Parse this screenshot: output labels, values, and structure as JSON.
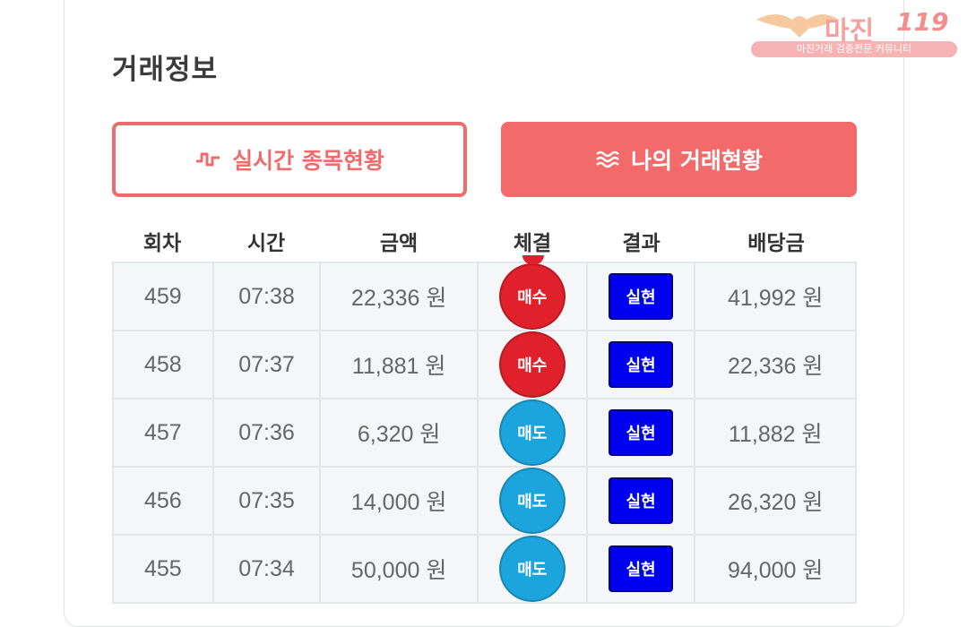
{
  "title": "거래정보",
  "watermark": {
    "brand": "마진",
    "suffix": "119",
    "tagline": "마진거래 검증전문 커뮤니티"
  },
  "buttons": {
    "realtime": "실시간 종목현황",
    "mytrades": "나의 거래현황"
  },
  "columns": [
    "회차",
    "시간",
    "금액",
    "체결",
    "결과",
    "배당금"
  ],
  "rows": [
    {
      "round": "459",
      "time": "07:38",
      "amount": "22,336 원",
      "side": "매수",
      "side_type": "buy",
      "result": "실현",
      "payout": "41,992 원"
    },
    {
      "round": "458",
      "time": "07:37",
      "amount": "11,881 원",
      "side": "매수",
      "side_type": "buy",
      "result": "실현",
      "payout": "22,336 원"
    },
    {
      "round": "457",
      "time": "07:36",
      "amount": "6,320 원",
      "side": "매도",
      "side_type": "sell",
      "result": "실현",
      "payout": "11,882 원"
    },
    {
      "round": "456",
      "time": "07:35",
      "amount": "14,000 원",
      "side": "매도",
      "side_type": "sell",
      "result": "실현",
      "payout": "26,320 원"
    },
    {
      "round": "455",
      "time": "07:34",
      "amount": "50,000 원",
      "side": "매도",
      "side_type": "sell",
      "result": "실현",
      "payout": "94,000 원"
    }
  ],
  "colors": {
    "accent": "#f26a6a",
    "buy": "#e0202a",
    "sell": "#1ba5dc",
    "result": "#0000f0"
  }
}
